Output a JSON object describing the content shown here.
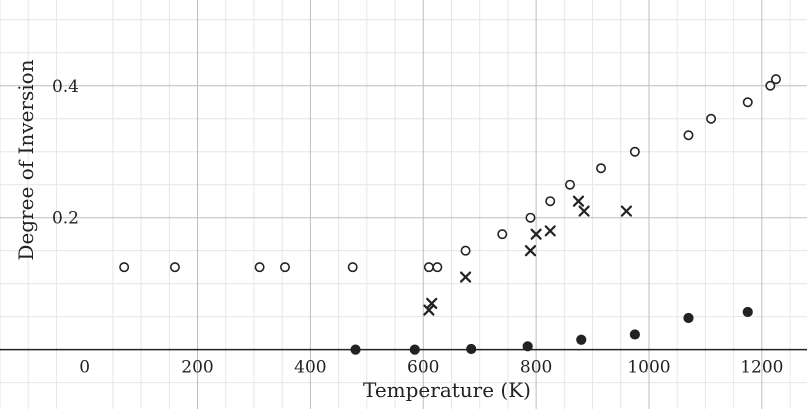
{
  "chart_data": {
    "type": "scatter",
    "title": "",
    "xlabel": "Temperature (K)",
    "ylabel": "Degree of Inversion",
    "xlim": [
      -150,
      1280
    ],
    "ylim": [
      -0.09,
      0.53
    ],
    "grid": true,
    "x_ticks": [
      0,
      200,
      400,
      600,
      800,
      1000,
      1200
    ],
    "x_tick_labels": [
      "0",
      "200",
      "400",
      "600",
      "800",
      "1000",
      "1200"
    ],
    "y_ticks": [
      0.2,
      0.4
    ],
    "y_tick_labels": [
      "0.2",
      "0.4"
    ],
    "series": [
      {
        "marker": "open-circle",
        "color": "#222222",
        "points": [
          [
            70,
            0.125
          ],
          [
            160,
            0.125
          ],
          [
            310,
            0.125
          ],
          [
            355,
            0.125
          ],
          [
            475,
            0.125
          ],
          [
            610,
            0.125
          ],
          [
            625,
            0.125
          ],
          [
            675,
            0.15
          ],
          [
            740,
            0.175
          ],
          [
            790,
            0.2
          ],
          [
            825,
            0.225
          ],
          [
            860,
            0.25
          ],
          [
            915,
            0.275
          ],
          [
            975,
            0.3
          ],
          [
            1070,
            0.325
          ],
          [
            1110,
            0.35
          ],
          [
            1175,
            0.375
          ],
          [
            1215,
            0.4
          ],
          [
            1225,
            0.41
          ]
        ]
      },
      {
        "marker": "cross",
        "color": "#222222",
        "points": [
          [
            610,
            0.06
          ],
          [
            615,
            0.07
          ],
          [
            675,
            0.11
          ],
          [
            790,
            0.15
          ],
          [
            800,
            0.175
          ],
          [
            825,
            0.18
          ],
          [
            875,
            0.225
          ],
          [
            885,
            0.21
          ],
          [
            960,
            0.21
          ]
        ]
      },
      {
        "marker": "filled-circle",
        "color": "#222222",
        "points": [
          [
            480,
            0.0
          ],
          [
            585,
            0.0
          ],
          [
            685,
            0.001
          ],
          [
            785,
            0.005
          ],
          [
            880,
            0.015
          ],
          [
            975,
            0.023
          ],
          [
            1070,
            0.048
          ],
          [
            1175,
            0.057
          ]
        ]
      }
    ]
  }
}
